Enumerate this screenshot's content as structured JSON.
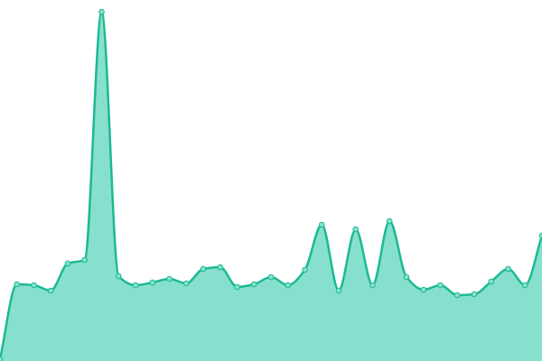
{
  "chart_data": {
    "type": "area",
    "categories": [
      null,
      null,
      null,
      null,
      null,
      null,
      null,
      null,
      null,
      null,
      null,
      null,
      null,
      null,
      null,
      null,
      null,
      null,
      null,
      null,
      null,
      null,
      null,
      null,
      null,
      null,
      null,
      null,
      null,
      null,
      null,
      null,
      null
    ],
    "series": [
      {
        "color": "#1db992",
        "fill": "#87e0cd",
        "values": [
          2,
          85,
          84,
          78,
          108,
          112,
          387,
          94,
          84,
          87,
          91,
          86,
          102,
          104,
          82,
          85,
          93,
          84,
          101,
          151,
          78,
          146,
          84,
          155,
          93,
          79,
          84,
          73,
          74,
          88,
          102,
          84,
          139
        ]
      }
    ],
    "ylim": [
      0,
      400
    ]
  }
}
